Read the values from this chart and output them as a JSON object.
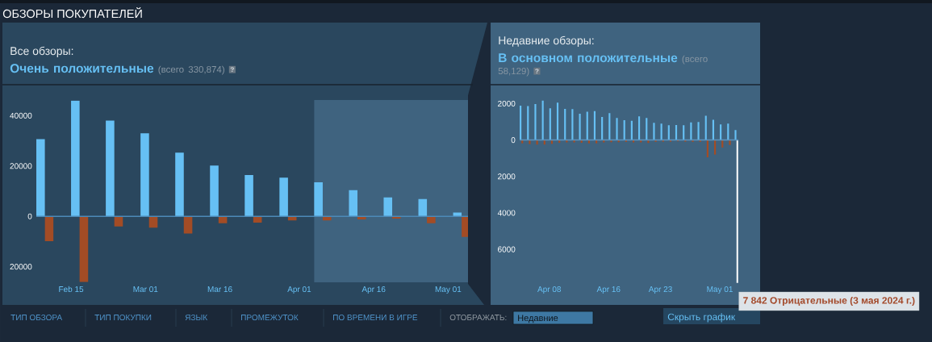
{
  "chart_data": [
    {
      "type": "bar",
      "title": "Все обзоры:",
      "subtitle": "Очень положительные",
      "annotations": [
        "ОБЗОРЫ ПОКУПАТЕЛЕЙ",
        "(всего 330,874)",
        "?",
        "ТИП ОБЗОРА",
        "ТИП ПОКУПКИ",
        "ЯЗЫК",
        "ПРОМЕЖУТОК",
        "ПО ВРЕМЕНИ В ИГРЕ",
        "ОТОБРАЖАТЬ:",
        "Недавние"
      ],
      "x": [
        "2024-02-08",
        "2024-02-15",
        "2024-02-22",
        "2024-02-29",
        "2024-03-07",
        "2024-03-14",
        "2024-03-21",
        "2024-03-28",
        "2024-04-04",
        "2024-04-11",
        "2024-04-18",
        "2024-04-25",
        "2024-05-02"
      ],
      "series": [
        {
          "color": "#66c0f4",
          "values": [
            30700,
            46000,
            38000,
            33000,
            25300,
            20200,
            16400,
            15400,
            13500,
            10400,
            7500,
            6900,
            1500
          ]
        },
        {
          "color": "#a34c25",
          "values": [
            -9900,
            -26000,
            -4000,
            -4500,
            -6800,
            -2700,
            -2500,
            -1600,
            -1600,
            -1200,
            -900,
            -2700,
            -8200
          ]
        }
      ],
      "xlim": [
        "2024-02-08",
        "2024-05-05"
      ],
      "xticks": [
        {
          "value": "2024-02-15",
          "label": "Feb 15"
        },
        {
          "value": "2024-03-01",
          "label": "Mar 01"
        },
        {
          "value": "2024-03-16",
          "label": "Mar 16"
        },
        {
          "value": "2024-04-01",
          "label": "Apr 01"
        },
        {
          "value": "2024-04-16",
          "label": "Apr 16"
        },
        {
          "value": "2024-05-01",
          "label": "May 01"
        }
      ],
      "ylim": [
        -26200,
        46200
      ],
      "yticks": [
        {
          "value": -20000,
          "label": "20000"
        },
        0,
        20000,
        40000
      ],
      "bands": [
        {
          "axis": "x",
          "from": "2024-04-04",
          "to": "2024-05-05",
          "color": "#3f637f"
        }
      ],
      "ref_lines": [
        {
          "axis": "y",
          "value": 0,
          "color": "#4c8ab8"
        }
      ]
    },
    {
      "type": "bar",
      "title": "Недавние обзоры:",
      "subtitle": "В основном положительные",
      "annotations": [
        "(всего 58,129)",
        "?",
        {
          "text": "7 842 Отрицательные (3 мая 2024 г.)",
          "x": "2024-05-03",
          "y": -7842
        },
        "Скрыть график"
      ],
      "x": [
        "2024-04-04",
        "2024-04-05",
        "2024-04-06",
        "2024-04-07",
        "2024-04-08",
        "2024-04-09",
        "2024-04-10",
        "2024-04-11",
        "2024-04-12",
        "2024-04-13",
        "2024-04-14",
        "2024-04-15",
        "2024-04-16",
        "2024-04-17",
        "2024-04-18",
        "2024-04-19",
        "2024-04-20",
        "2024-04-21",
        "2024-04-22",
        "2024-04-23",
        "2024-04-24",
        "2024-04-25",
        "2024-04-26",
        "2024-04-27",
        "2024-04-28",
        "2024-04-29",
        "2024-04-30",
        "2024-05-01",
        "2024-05-02",
        "2024-05-03"
      ],
      "series": [
        {
          "color": "#66c0f4",
          "values": [
            1890,
            1860,
            1980,
            2180,
            1740,
            2050,
            1710,
            1700,
            1450,
            1550,
            1590,
            1270,
            1480,
            1210,
            1090,
            1060,
            1300,
            1210,
            950,
            900,
            810,
            830,
            810,
            970,
            990,
            1330,
            1110,
            860,
            900,
            550
          ]
        },
        {
          "colors": [
            "#a34c25",
            "#a34c25",
            "#a34c25",
            "#a34c25",
            "#a34c25",
            "#a34c25",
            "#a34c25",
            "#a34c25",
            "#a34c25",
            "#a34c25",
            "#a34c25",
            "#a34c25",
            "#a34c25",
            "#a34c25",
            "#a34c25",
            "#a34c25",
            "#a34c25",
            "#a34c25",
            "#a34c25",
            "#a34c25",
            "#a34c25",
            "#a34c25",
            "#a34c25",
            "#a34c25",
            "#a34c25",
            "#a34c25",
            "#a34c25",
            "#a34c25",
            "#a34c25",
            "#ffffff"
          ],
          "values": [
            -180,
            -220,
            -250,
            -250,
            -210,
            -150,
            -130,
            -130,
            -150,
            -180,
            -180,
            -130,
            -120,
            -120,
            -100,
            -130,
            -130,
            -160,
            -100,
            -90,
            -90,
            -70,
            -90,
            -100,
            -100,
            -950,
            -800,
            -410,
            -270,
            -7842
          ]
        }
      ],
      "xlim": [
        "2024-04-04",
        "2024-05-03T12:00"
      ],
      "xticks": [
        {
          "value": "2024-04-08",
          "label": "Apr 08"
        },
        {
          "value": "2024-04-16",
          "label": "Apr 16"
        },
        {
          "value": "2024-04-23",
          "label": "Apr 23"
        },
        {
          "value": "2024-05-01",
          "label": "May 01"
        }
      ],
      "ylim": [
        -7900,
        2180
      ],
      "yticks": [
        {
          "value": -6000,
          "label": "6000"
        },
        {
          "value": -4000,
          "label": "4000"
        },
        {
          "value": -2000,
          "label": "2000"
        },
        0,
        2000
      ],
      "ref_lines": [
        {
          "axis": "y",
          "value": 0,
          "color": "#5b94bf"
        }
      ]
    }
  ]
}
